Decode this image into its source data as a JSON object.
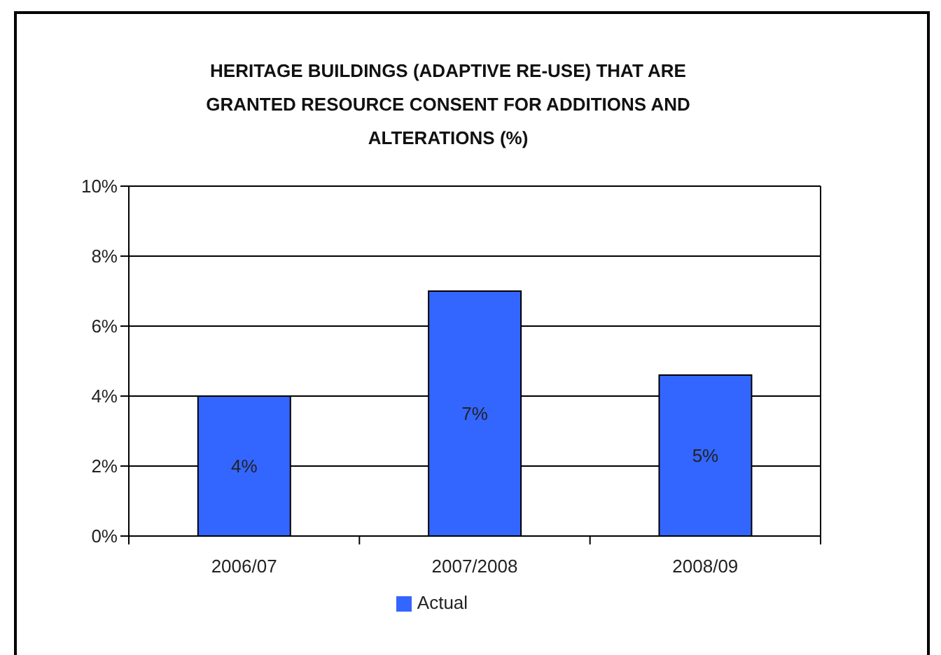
{
  "chart_data": {
    "type": "bar",
    "title": "HERITAGE BUILDINGS (ADAPTIVE RE-USE) THAT ARE GRANTED RESOURCE CONSENT FOR ADDITIONS AND ALTERATIONS (%)",
    "categories": [
      "2006/07",
      "2007/2008",
      "2008/09"
    ],
    "series": [
      {
        "name": "Actual",
        "color": "#3366ff",
        "values": [
          4,
          7,
          4.6
        ],
        "value_labels": [
          "4%",
          "7%",
          "5%"
        ]
      }
    ],
    "ylim": [
      0,
      10
    ],
    "yticks": [
      {
        "value": 0,
        "label": "0%"
      },
      {
        "value": 2,
        "label": "2%"
      },
      {
        "value": 4,
        "label": "4%"
      },
      {
        "value": 6,
        "label": "6%"
      },
      {
        "value": 8,
        "label": "8%"
      },
      {
        "value": 10,
        "label": "10%"
      }
    ],
    "grid": "y",
    "legend": "bottom"
  }
}
